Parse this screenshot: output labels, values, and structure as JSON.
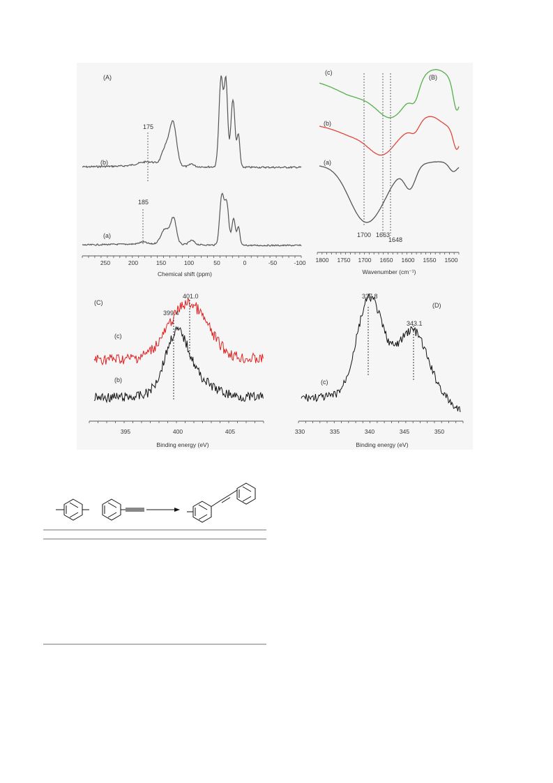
{
  "figure": {
    "panels": [
      {
        "id": "A",
        "label": "(A)",
        "x_axis_label": "Chemical shift (ppm)",
        "x_ticks": [
          "250",
          "200",
          "150",
          "100",
          "50",
          "0",
          "-50",
          "-100"
        ],
        "traces": [
          {
            "label": "(b)",
            "color": "#555555"
          },
          {
            "label": "(a)",
            "color": "#555555"
          }
        ],
        "annotations": [
          "175",
          "185"
        ]
      },
      {
        "id": "B",
        "label": "(B)",
        "x_axis_label": "Wavenumber (cm⁻¹)",
        "x_ticks": [
          "1800",
          "1750",
          "1700",
          "1650",
          "1600",
          "1550",
          "1500"
        ],
        "traces": [
          {
            "label": "(c)",
            "color": "#55b04a"
          },
          {
            "label": "(b)",
            "color": "#e0473a"
          },
          {
            "label": "(a)",
            "color": "#555555"
          }
        ],
        "annotations": [
          "1700",
          "1663",
          "1648"
        ]
      },
      {
        "id": "C",
        "label": "(C)",
        "x_axis_label": "Binding energy (eV)",
        "x_ticks": [
          "395",
          "400",
          "405"
        ],
        "traces": [
          {
            "label": "(c)",
            "color": "#e02020"
          },
          {
            "label": "(b)",
            "color": "#111111"
          }
        ],
        "annotations": [
          "401.0",
          "399.4"
        ]
      },
      {
        "id": "D",
        "label": "(D)",
        "x_axis_label": "Binding energy (eV)",
        "x_ticks": [
          "330",
          "335",
          "340",
          "345",
          "350"
        ],
        "traces": [
          {
            "label": "(c)",
            "color": "#111111"
          }
        ],
        "annotations": [
          "337.8",
          "343.1"
        ]
      }
    ]
  }
}
